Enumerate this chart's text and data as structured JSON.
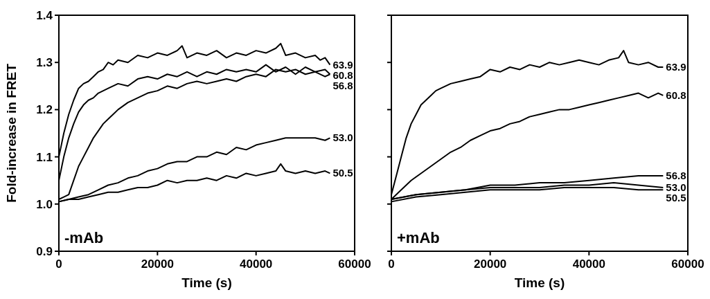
{
  "chart_data": [
    {
      "type": "line",
      "xlabel": "Time (s)",
      "ylabel": "Fold-increase in FRET",
      "xlim": [
        0,
        60000
      ],
      "xticks": [
        0,
        20000,
        40000,
        60000
      ],
      "ylim": [
        0.9,
        1.4
      ],
      "yticks": [
        0.9,
        {
          "value": 1,
          "label": "1.0"
        },
        1.1,
        1.2,
        1.3,
        1.4
      ],
      "grid": false,
      "annotations": [
        "-mAb"
      ],
      "series": [
        {
          "name": "63.9",
          "color": "#000000",
          "x": [
            0,
            1000,
            2000,
            3000,
            4000,
            5000,
            6000,
            7000,
            8000,
            9000,
            10000,
            11000,
            12000,
            14000,
            16000,
            18000,
            20000,
            22000,
            24000,
            25000,
            26000,
            28000,
            30000,
            32000,
            34000,
            36000,
            38000,
            40000,
            42000,
            44000,
            45000,
            46000,
            48000,
            50000,
            52000,
            53000,
            54000,
            55000
          ],
          "values": [
            1.1,
            1.15,
            1.19,
            1.22,
            1.245,
            1.255,
            1.26,
            1.27,
            1.28,
            1.285,
            1.3,
            1.295,
            1.305,
            1.3,
            1.315,
            1.31,
            1.32,
            1.315,
            1.325,
            1.335,
            1.31,
            1.32,
            1.315,
            1.325,
            1.31,
            1.32,
            1.315,
            1.325,
            1.32,
            1.33,
            1.34,
            1.315,
            1.32,
            1.31,
            1.315,
            1.305,
            1.31,
            1.295
          ]
        },
        {
          "name": "60.8",
          "color": "#000000",
          "x": [
            0,
            1000,
            2000,
            3000,
            4000,
            5000,
            6000,
            7000,
            8000,
            10000,
            12000,
            14000,
            16000,
            18000,
            20000,
            22000,
            24000,
            26000,
            28000,
            30000,
            32000,
            34000,
            36000,
            38000,
            40000,
            42000,
            44000,
            46000,
            48000,
            50000,
            52000,
            54000,
            55000
          ],
          "values": [
            1.05,
            1.1,
            1.14,
            1.17,
            1.195,
            1.21,
            1.22,
            1.225,
            1.235,
            1.245,
            1.255,
            1.25,
            1.265,
            1.27,
            1.265,
            1.275,
            1.27,
            1.28,
            1.27,
            1.28,
            1.275,
            1.285,
            1.28,
            1.285,
            1.28,
            1.295,
            1.28,
            1.29,
            1.275,
            1.29,
            1.28,
            1.285,
            1.275
          ]
        },
        {
          "name": "56.8",
          "color": "#000000",
          "x": [
            0,
            1000,
            2000,
            3000,
            4000,
            5000,
            6000,
            7000,
            8000,
            9000,
            10000,
            11000,
            12000,
            14000,
            16000,
            18000,
            20000,
            22000,
            24000,
            26000,
            28000,
            30000,
            32000,
            34000,
            36000,
            38000,
            40000,
            42000,
            44000,
            46000,
            48000,
            50000,
            52000,
            54000,
            55000
          ],
          "values": [
            1.01,
            1.015,
            1.02,
            1.05,
            1.08,
            1.1,
            1.12,
            1.14,
            1.155,
            1.17,
            1.18,
            1.19,
            1.2,
            1.215,
            1.225,
            1.235,
            1.24,
            1.25,
            1.245,
            1.255,
            1.26,
            1.255,
            1.26,
            1.265,
            1.26,
            1.27,
            1.275,
            1.27,
            1.285,
            1.28,
            1.285,
            1.275,
            1.28,
            1.27,
            1.275
          ]
        },
        {
          "name": "53.0",
          "color": "#000000",
          "x": [
            0,
            2000,
            4000,
            6000,
            8000,
            10000,
            12000,
            14000,
            16000,
            18000,
            20000,
            22000,
            24000,
            26000,
            28000,
            30000,
            32000,
            34000,
            36000,
            38000,
            40000,
            42000,
            44000,
            46000,
            48000,
            50000,
            52000,
            54000,
            55000
          ],
          "values": [
            1.005,
            1.01,
            1.015,
            1.02,
            1.03,
            1.04,
            1.045,
            1.055,
            1.06,
            1.07,
            1.075,
            1.085,
            1.09,
            1.09,
            1.1,
            1.1,
            1.11,
            1.105,
            1.12,
            1.115,
            1.125,
            1.13,
            1.135,
            1.14,
            1.14,
            1.14,
            1.14,
            1.135,
            1.14
          ]
        },
        {
          "name": "50.5",
          "color": "#000000",
          "x": [
            0,
            2000,
            4000,
            6000,
            8000,
            10000,
            12000,
            14000,
            16000,
            18000,
            20000,
            22000,
            24000,
            26000,
            28000,
            30000,
            32000,
            34000,
            36000,
            38000,
            40000,
            42000,
            44000,
            45000,
            46000,
            48000,
            50000,
            52000,
            54000,
            55000
          ],
          "values": [
            1.005,
            1.01,
            1.01,
            1.015,
            1.02,
            1.025,
            1.025,
            1.03,
            1.035,
            1.035,
            1.04,
            1.05,
            1.045,
            1.05,
            1.05,
            1.055,
            1.05,
            1.06,
            1.055,
            1.065,
            1.06,
            1.065,
            1.07,
            1.085,
            1.07,
            1.065,
            1.07,
            1.065,
            1.07,
            1.065
          ]
        }
      ]
    },
    {
      "type": "line",
      "xlabel": "Time (s)",
      "xlim": [
        0,
        60000
      ],
      "xticks": [
        0,
        20000,
        40000,
        60000
      ],
      "ylim": [
        0.9,
        1.4
      ],
      "yticks": [
        0.9,
        1,
        1.1,
        1.2,
        1.3,
        1.4
      ],
      "tick_labels": "x",
      "grid": false,
      "annotations": [
        "+mAb"
      ],
      "series": [
        {
          "name": "63.9",
          "color": "#000000",
          "x": [
            0,
            1000,
            2000,
            3000,
            4000,
            5000,
            6000,
            7000,
            8000,
            9000,
            10000,
            12000,
            14000,
            16000,
            18000,
            20000,
            22000,
            24000,
            26000,
            28000,
            30000,
            32000,
            34000,
            36000,
            38000,
            40000,
            42000,
            44000,
            46000,
            47000,
            48000,
            50000,
            52000,
            54000,
            55000
          ],
          "values": [
            1.02,
            1.06,
            1.1,
            1.14,
            1.17,
            1.19,
            1.21,
            1.22,
            1.23,
            1.24,
            1.245,
            1.255,
            1.26,
            1.265,
            1.27,
            1.285,
            1.28,
            1.29,
            1.285,
            1.295,
            1.29,
            1.3,
            1.295,
            1.3,
            1.305,
            1.3,
            1.295,
            1.305,
            1.31,
            1.325,
            1.3,
            1.295,
            1.3,
            1.29,
            1.29
          ]
        },
        {
          "name": "60.8",
          "color": "#000000",
          "x": [
            0,
            2000,
            4000,
            6000,
            8000,
            10000,
            12000,
            14000,
            16000,
            18000,
            20000,
            22000,
            24000,
            26000,
            28000,
            30000,
            32000,
            34000,
            36000,
            38000,
            40000,
            42000,
            44000,
            46000,
            48000,
            50000,
            52000,
            54000,
            55000
          ],
          "values": [
            1.01,
            1.03,
            1.05,
            1.065,
            1.08,
            1.095,
            1.11,
            1.12,
            1.135,
            1.145,
            1.155,
            1.16,
            1.17,
            1.175,
            1.185,
            1.19,
            1.195,
            1.2,
            1.2,
            1.205,
            1.21,
            1.215,
            1.22,
            1.225,
            1.23,
            1.235,
            1.225,
            1.235,
            1.23
          ]
        },
        {
          "name": "56.8",
          "color": "#000000",
          "x": [
            0,
            5000,
            10000,
            15000,
            20000,
            25000,
            30000,
            35000,
            40000,
            45000,
            50000,
            55000
          ],
          "values": [
            1.01,
            1.02,
            1.025,
            1.03,
            1.04,
            1.04,
            1.045,
            1.045,
            1.05,
            1.055,
            1.06,
            1.06
          ]
        },
        {
          "name": "53.0",
          "color": "#000000",
          "x": [
            0,
            5000,
            10000,
            15000,
            20000,
            25000,
            30000,
            35000,
            40000,
            45000,
            50000,
            55000
          ],
          "values": [
            1.01,
            1.02,
            1.025,
            1.03,
            1.035,
            1.035,
            1.035,
            1.04,
            1.04,
            1.045,
            1.04,
            1.035
          ]
        },
        {
          "name": "50.5",
          "color": "#000000",
          "x": [
            0,
            5000,
            10000,
            15000,
            20000,
            25000,
            30000,
            35000,
            40000,
            45000,
            50000,
            55000
          ],
          "values": [
            1.005,
            1.015,
            1.02,
            1.025,
            1.03,
            1.03,
            1.03,
            1.035,
            1.035,
            1.035,
            1.03,
            1.03
          ]
        }
      ]
    }
  ]
}
